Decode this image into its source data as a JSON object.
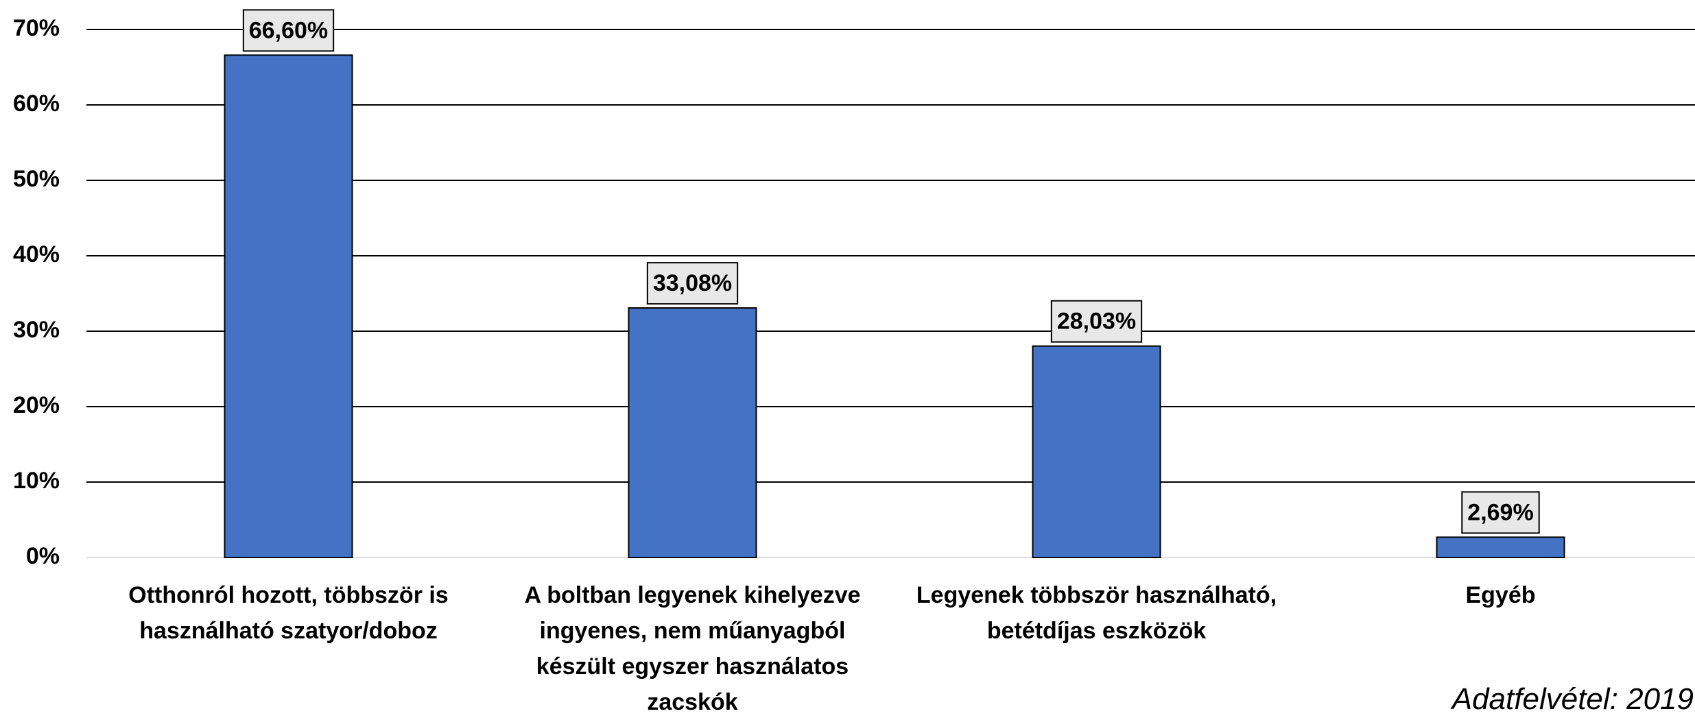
{
  "chart_data": {
    "type": "bar",
    "categories": [
      "Otthonról hozott, többször is használható szatyor/doboz",
      "A boltban legyenek kihelyezve ingyenes, nem műanyagból készült egyszer használatos zacskók",
      "Legyenek többször használható, betétdíjas eszközök",
      "Egyéb"
    ],
    "values": [
      66.6,
      33.08,
      28.03,
      2.69
    ],
    "value_labels": [
      "66,60%",
      "33,08%",
      "28,03%",
      "2,69%"
    ],
    "color": "#4472c4",
    "ylim": [
      0,
      70
    ],
    "yticks": [
      {
        "value": 0,
        "label": "0%"
      },
      {
        "value": 10,
        "label": "10%"
      },
      {
        "value": 20,
        "label": "20%"
      },
      {
        "value": 30,
        "label": "30%"
      },
      {
        "value": 40,
        "label": "40%"
      },
      {
        "value": 50,
        "label": "50%"
      },
      {
        "value": 60,
        "label": "60%"
      },
      {
        "value": 70,
        "label": "70%"
      }
    ],
    "grid": true,
    "annotation": "Adatfelvétel: 2019"
  }
}
